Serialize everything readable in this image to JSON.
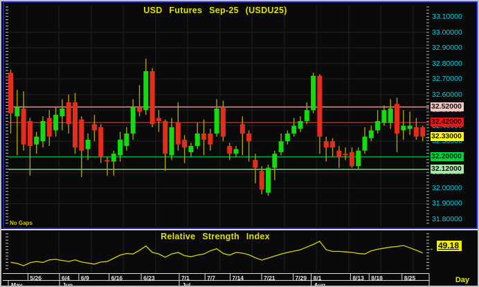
{
  "window": {
    "title": "USD Futures Sep-25 (USDU25)",
    "no_gaps_label": "No Gaps",
    "period_label": "Day"
  },
  "colors": {
    "background": "#0a0a0a",
    "panel_border_blue": "#1c1cd8",
    "outer_frame": "#c0c0c0",
    "title_yellow": "#e0e000",
    "axis_label_cyan": "#00d8e8",
    "candle_up": "#10dc10",
    "candle_down": "#e82c1c",
    "wick": "#b0a010",
    "rsi_line": "#d8d800",
    "gridline": "#202020",
    "date_text": "#e8e8e8"
  },
  "price_axis": {
    "tick_labels": [
      "33.10000",
      "33.00000",
      "32.90000",
      "32.80000",
      "32.70000",
      "32.60000",
      "32.50000",
      "32.40000",
      "32.30000",
      "32.20000",
      "32.10000",
      "32.00000",
      "31.90000",
      "31.80000"
    ],
    "highlights": [
      {
        "label": "32.52000",
        "value": 32.52,
        "bg": "#f0c6c6",
        "fg": "#141414",
        "arrow": false
      },
      {
        "label": "32.42000",
        "value": 32.42,
        "bg": "#ee1414",
        "fg": "#141414",
        "arrow": false
      },
      {
        "label": "32.33000",
        "value": 32.33,
        "bg": "#ffff00",
        "fg": "#141414",
        "arrow": true
      },
      {
        "label": "32.20000",
        "value": 32.2,
        "bg": "#00d43c",
        "fg": "#103010",
        "arrow": false
      },
      {
        "label": "32.12000",
        "value": 32.12,
        "bg": "#a8e8a8",
        "fg": "#141414",
        "arrow": false
      }
    ]
  },
  "x_axis": {
    "date_ticks": [
      {
        "label": "5/26",
        "i": 3.0
      },
      {
        "label": "6/4",
        "i": 7.9
      },
      {
        "label": "6/9",
        "i": 10.9
      },
      {
        "label": "6/16",
        "i": 15.6
      },
      {
        "label": "6/23",
        "i": 20.6
      },
      {
        "label": "7/1",
        "i": 26.5
      },
      {
        "label": "7/7",
        "i": 30.5
      },
      {
        "label": "7/14",
        "i": 34.4
      },
      {
        "label": "7/21",
        "i": 39.3
      },
      {
        "label": "7/29",
        "i": 44.2
      },
      {
        "label": "8/1",
        "i": 47.0
      },
      {
        "label": "8/13",
        "i": 53.1
      },
      {
        "label": "8/18",
        "i": 56.0
      },
      {
        "label": "8/25",
        "i": 61.1
      }
    ],
    "month_ticks": [
      {
        "label": "May",
        "i": -0.4
      },
      {
        "label": "Jun",
        "i": 7.9
      },
      {
        "label": "Jul",
        "i": 26.5
      },
      {
        "label": "Aug",
        "i": 47.0
      }
    ]
  },
  "rsi": {
    "title": "Relative Strength Index",
    "value": "49.18"
  },
  "chart_data": [
    {
      "type": "candlestick",
      "title": "USD Futures Sep-25 (USDU25)",
      "timeframe": "Day",
      "ylim": [
        31.8,
        33.1
      ],
      "y_tick_step": 0.1,
      "grid": true,
      "current_price": 32.33,
      "hlines": [
        {
          "price": 32.52,
          "color": "#c89090"
        },
        {
          "price": 32.42,
          "color": "#d41818"
        },
        {
          "price": 32.2,
          "color": "#00a428"
        },
        {
          "price": 32.12,
          "color": "#8cc88c"
        }
      ],
      "ohlc": [
        [
          32.74,
          32.76,
          32.35,
          32.48
        ],
        [
          32.46,
          32.63,
          32.21,
          32.52
        ],
        [
          32.51,
          32.62,
          32.24,
          32.28
        ],
        [
          32.43,
          32.45,
          32.08,
          32.27
        ],
        [
          32.28,
          32.36,
          32.22,
          32.33
        ],
        [
          32.3,
          32.46,
          32.26,
          32.43
        ],
        [
          32.45,
          32.5,
          32.27,
          32.33
        ],
        [
          32.37,
          32.52,
          32.33,
          32.47
        ],
        [
          32.46,
          32.57,
          32.37,
          32.51
        ],
        [
          32.55,
          32.6,
          32.35,
          32.41
        ],
        [
          32.55,
          32.61,
          32.22,
          32.26
        ],
        [
          32.44,
          32.46,
          32.07,
          32.24
        ],
        [
          32.25,
          32.35,
          32.18,
          32.31
        ],
        [
          32.41,
          32.47,
          32.3,
          32.37
        ],
        [
          32.39,
          32.41,
          32.16,
          32.2
        ],
        [
          32.18,
          32.2,
          32.08,
          32.17
        ],
        [
          32.17,
          32.24,
          32.08,
          32.22
        ],
        [
          32.21,
          32.36,
          32.17,
          32.31
        ],
        [
          32.27,
          32.39,
          32.24,
          32.35
        ],
        [
          32.35,
          32.57,
          32.31,
          32.52
        ],
        [
          32.52,
          32.66,
          32.46,
          32.49
        ],
        [
          32.5,
          32.83,
          32.47,
          32.75
        ],
        [
          32.75,
          32.77,
          32.39,
          32.41
        ],
        [
          32.45,
          32.5,
          32.36,
          32.43
        ],
        [
          32.43,
          32.44,
          32.11,
          32.22
        ],
        [
          32.21,
          32.45,
          32.18,
          32.39
        ],
        [
          32.42,
          32.55,
          32.24,
          32.28
        ],
        [
          32.31,
          32.34,
          32.16,
          32.26
        ],
        [
          32.23,
          32.29,
          32.2,
          32.27
        ],
        [
          32.27,
          32.42,
          32.25,
          32.35
        ],
        [
          32.35,
          32.44,
          32.21,
          32.31
        ],
        [
          32.35,
          32.38,
          32.24,
          32.28
        ],
        [
          32.35,
          32.57,
          32.33,
          32.51
        ],
        [
          32.52,
          32.56,
          32.3,
          32.33
        ],
        [
          32.27,
          32.29,
          32.18,
          32.22
        ],
        [
          32.22,
          32.27,
          32.2,
          32.25
        ],
        [
          32.41,
          32.46,
          32.21,
          32.35
        ],
        [
          32.35,
          32.37,
          32.17,
          32.3
        ],
        [
          32.18,
          32.22,
          32.03,
          32.13
        ],
        [
          32.11,
          32.14,
          31.96,
          31.99
        ],
        [
          31.97,
          32.15,
          31.95,
          32.13
        ],
        [
          32.13,
          32.24,
          32.05,
          32.22
        ],
        [
          32.23,
          32.35,
          32.21,
          32.3
        ],
        [
          32.3,
          32.37,
          32.28,
          32.35
        ],
        [
          32.35,
          32.45,
          32.33,
          32.4
        ],
        [
          32.38,
          32.46,
          32.36,
          32.43
        ],
        [
          32.43,
          32.55,
          32.41,
          32.5
        ],
        [
          32.5,
          32.74,
          32.48,
          32.72
        ],
        [
          32.72,
          32.73,
          32.22,
          32.33
        ],
        [
          32.3,
          32.33,
          32.17,
          32.26
        ],
        [
          32.3,
          32.32,
          32.2,
          32.26
        ],
        [
          32.24,
          32.27,
          32.13,
          32.2
        ],
        [
          32.22,
          32.26,
          32.18,
          32.21
        ],
        [
          32.23,
          32.26,
          32.13,
          32.14
        ],
        [
          32.14,
          32.26,
          32.12,
          32.24
        ],
        [
          32.24,
          32.39,
          32.22,
          32.33
        ],
        [
          32.32,
          32.4,
          32.3,
          32.37
        ],
        [
          32.37,
          32.5,
          32.35,
          32.43
        ],
        [
          32.42,
          32.53,
          32.4,
          32.5
        ],
        [
          32.42,
          32.57,
          32.38,
          32.51
        ],
        [
          32.54,
          32.58,
          32.23,
          32.35
        ],
        [
          32.37,
          32.5,
          32.31,
          32.4
        ],
        [
          32.38,
          32.49,
          32.34,
          32.4
        ],
        [
          32.39,
          32.45,
          32.31,
          32.33
        ],
        [
          32.39,
          32.4,
          32.3,
          32.33
        ]
      ]
    },
    {
      "type": "line",
      "title": "Relative Strength Index",
      "last_value": 49.18,
      "value_range_shown": [
        22,
        78
      ],
      "values": [
        35.2,
        33.5,
        30.1,
        34.6,
        36.4,
        35.0,
        38.8,
        39.6,
        38.0,
        36.4,
        38.8,
        35.6,
        34.0,
        32.5,
        35.6,
        36.4,
        41.2,
        46.0,
        48.4,
        47.6,
        53.2,
        59.6,
        50.0,
        47.6,
        42.8,
        47.6,
        50.0,
        45.2,
        43.6,
        46.0,
        47.6,
        52.4,
        55.6,
        48.4,
        46.0,
        50.0,
        49.0,
        46.5,
        42.0,
        38.5,
        41.5,
        44.5,
        47.5,
        50.0,
        52.0,
        54.0,
        58.0,
        62.0,
        66.8,
        54.0,
        51.6,
        51.6,
        50.8,
        50.0,
        48.4,
        47.6,
        52.4,
        54.8,
        56.4,
        58.0,
        58.8,
        60.4,
        57.0,
        53.2,
        49.18
      ]
    }
  ]
}
